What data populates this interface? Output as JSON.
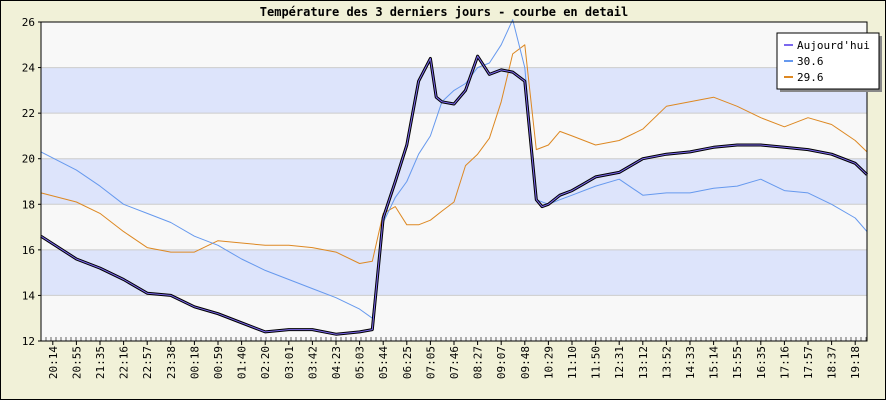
{
  "chart_data": {
    "type": "line",
    "title": "Température des 3 derniers jours - courbe en detail",
    "xlabel": "",
    "ylabel": "",
    "ylim": [
      12,
      26
    ],
    "y_ticks": [
      12,
      14,
      16,
      18,
      20,
      22,
      24,
      26
    ],
    "x_tick_labels": [
      "20:14",
      "20:55",
      "21:35",
      "22:16",
      "22:57",
      "23:38",
      "00:18",
      "00:59",
      "01:40",
      "02:20",
      "03:01",
      "03:42",
      "04:23",
      "05:03",
      "05:44",
      "06:25",
      "07:05",
      "07:46",
      "08:27",
      "09:07",
      "09:48",
      "10:29",
      "11:10",
      "11:50",
      "12:31",
      "13:12",
      "13:52",
      "14:33",
      "15:14",
      "15:55",
      "16:35",
      "17:16",
      "17:57",
      "18:37",
      "19:18"
    ],
    "grid": "horizontal alternating bands",
    "legend_position": "top-right",
    "series": [
      {
        "name": "Aujourd'hui",
        "color": "#000080",
        "x": [
          "20:14",
          "20:55",
          "21:35",
          "22:16",
          "22:57",
          "23:38",
          "00:18",
          "00:59",
          "01:40",
          "02:20",
          "03:01",
          "03:42",
          "04:23",
          "05:03",
          "05:25",
          "05:44",
          "06:05",
          "06:25",
          "06:45",
          "07:05",
          "07:15",
          "07:25",
          "07:46",
          "08:06",
          "08:27",
          "08:47",
          "09:07",
          "09:27",
          "09:48",
          "10:08",
          "10:18",
          "10:29",
          "10:49",
          "11:10",
          "11:30",
          "11:50",
          "12:31",
          "13:12",
          "13:52",
          "14:33",
          "15:14",
          "15:55",
          "16:35",
          "17:16",
          "17:57",
          "18:37",
          "19:18",
          "19:40"
        ],
        "y": [
          16.6,
          15.6,
          15.2,
          14.7,
          14.1,
          14.0,
          13.5,
          13.2,
          12.8,
          12.4,
          12.5,
          12.5,
          12.3,
          12.4,
          12.5,
          17.4,
          19.0,
          20.6,
          23.4,
          24.4,
          22.7,
          22.5,
          22.4,
          23.0,
          24.5,
          23.7,
          23.9,
          23.8,
          23.4,
          18.2,
          17.9,
          18.0,
          18.4,
          18.6,
          18.9,
          19.2,
          19.4,
          20.0,
          20.2,
          20.3,
          20.5,
          20.6,
          20.6,
          20.5,
          20.4,
          20.2,
          19.8,
          19.3
        ]
      },
      {
        "name": "30.6",
        "color": "#6699ee",
        "x": [
          "20:14",
          "20:55",
          "21:35",
          "22:16",
          "22:57",
          "23:38",
          "00:18",
          "00:59",
          "01:40",
          "02:20",
          "03:01",
          "03:42",
          "04:23",
          "05:03",
          "05:25",
          "05:44",
          "06:05",
          "06:25",
          "06:45",
          "07:05",
          "07:25",
          "07:46",
          "08:06",
          "08:27",
          "08:47",
          "09:07",
          "09:27",
          "09:48",
          "10:08",
          "10:29",
          "10:49",
          "11:10",
          "11:50",
          "12:31",
          "13:12",
          "13:52",
          "14:33",
          "15:14",
          "15:55",
          "16:35",
          "17:16",
          "17:57",
          "18:37",
          "19:18",
          "19:40"
        ],
        "y": [
          20.3,
          19.5,
          18.8,
          18.0,
          17.6,
          17.2,
          16.6,
          16.2,
          15.6,
          15.1,
          14.7,
          14.3,
          13.9,
          13.4,
          13.0,
          17.2,
          18.3,
          19.0,
          20.2,
          21.0,
          22.5,
          23.0,
          23.3,
          24.0,
          24.2,
          25.0,
          26.1,
          24.0,
          18.2,
          18.0,
          18.2,
          18.4,
          18.8,
          19.1,
          18.4,
          18.5,
          18.5,
          18.7,
          18.8,
          19.1,
          18.6,
          18.5,
          18.0,
          17.4,
          16.8
        ]
      },
      {
        "name": "29.6",
        "color": "#dd8822",
        "x": [
          "20:14",
          "20:55",
          "21:35",
          "22:16",
          "22:57",
          "23:38",
          "00:18",
          "00:59",
          "01:40",
          "02:20",
          "03:01",
          "03:42",
          "04:23",
          "05:03",
          "05:25",
          "05:44",
          "06:05",
          "06:25",
          "06:45",
          "07:05",
          "07:25",
          "07:46",
          "08:06",
          "08:27",
          "08:47",
          "09:07",
          "09:27",
          "09:48",
          "10:08",
          "10:29",
          "10:49",
          "11:10",
          "11:50",
          "12:31",
          "13:12",
          "13:52",
          "14:33",
          "15:14",
          "15:55",
          "16:35",
          "17:16",
          "17:57",
          "18:37",
          "19:18",
          "19:40"
        ],
        "y": [
          18.5,
          18.1,
          17.6,
          16.8,
          16.1,
          15.9,
          15.9,
          16.4,
          16.3,
          16.2,
          16.2,
          16.1,
          15.9,
          15.4,
          15.5,
          17.6,
          17.9,
          17.1,
          17.1,
          17.3,
          17.7,
          18.1,
          19.7,
          20.2,
          20.9,
          22.5,
          24.6,
          25.0,
          20.4,
          20.6,
          21.2,
          21.0,
          20.6,
          20.8,
          21.3,
          22.3,
          22.5,
          22.7,
          22.3,
          21.8,
          21.4,
          21.8,
          21.5,
          20.8,
          20.3
        ]
      }
    ]
  }
}
